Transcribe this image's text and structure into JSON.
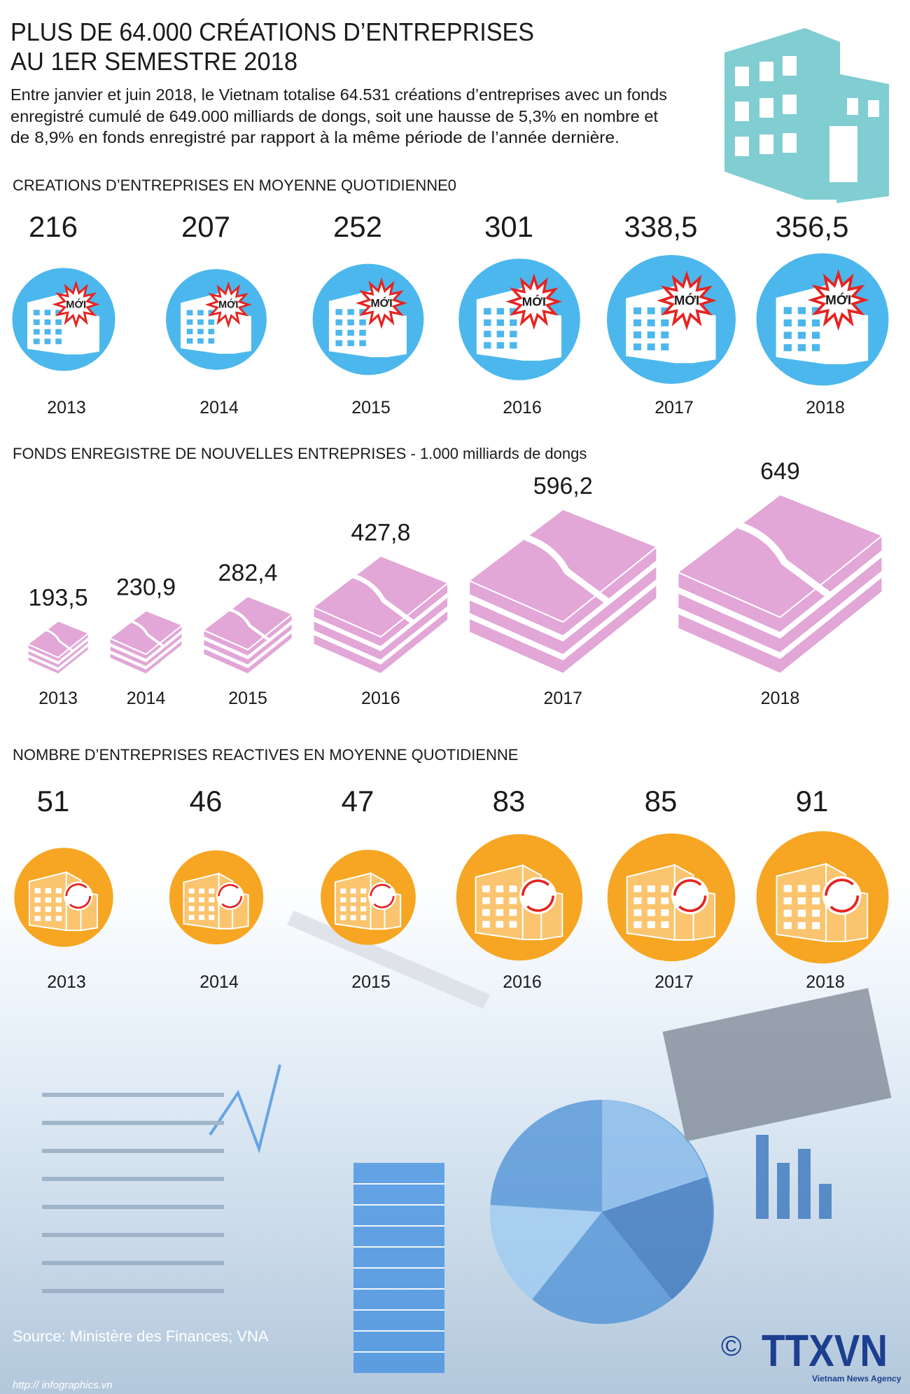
{
  "title": [
    "PLUS DE 64.000 CRÉATIONS D’ENTREPRISES",
    "AU 1ER SEMESTRE 2018"
  ],
  "description": [
    "Entre janvier et juin 2018, le Vietnam totalise 64.531 créations d’entreprises avec un fonds",
    "enregistré cumulé de 649.000 milliards de dongs, soit une hausse de 5,3% en nombre et",
    "de 8,9% en fonds enregistré par rapport à la même période de l’année dernière."
  ],
  "chart_data": [
    {
      "type": "bubble",
      "title": "CREATIONS D’ENTREPRISES EN MOYENNE QUOTIDIENNE0",
      "categories": [
        "2013",
        "2014",
        "2015",
        "2016",
        "2017",
        "2018"
      ],
      "values": [
        216,
        207,
        252,
        301,
        338.5,
        356.5
      ],
      "value_labels": [
        "216",
        "207",
        "252",
        "301",
        "338,5",
        "356,5"
      ],
      "color": "#4cb7ec",
      "badge": "MỚI"
    },
    {
      "type": "stack",
      "title": "FONDS ENREGISTRE DE NOUVELLES ENTREPRISES - 1.000 milliards de dongs",
      "categories": [
        "2013",
        "2014",
        "2015",
        "2016",
        "2017",
        "2018"
      ],
      "values": [
        193.5,
        230.9,
        282.4,
        427.8,
        596.2,
        649
      ],
      "value_labels": [
        "193,5",
        "230,9",
        "282,4",
        "427,8",
        "596,2",
        "649"
      ],
      "color": "#e2a6d7"
    },
    {
      "type": "bubble",
      "title": "NOMBRE D’ENTREPRISES REACTIVES EN MOYENNE QUOTIDIENNE",
      "categories": [
        "2013",
        "2014",
        "2015",
        "2016",
        "2017",
        "2018"
      ],
      "values": [
        51,
        46,
        47,
        83,
        85,
        91
      ],
      "color": "#f6a623"
    }
  ],
  "source": "Source: Ministère des Finances; VNA",
  "url": "http:// infographics.vn",
  "logo": {
    "copyright": "©",
    "name": "TTXVN",
    "tagline": "Vietnam News Agency"
  }
}
